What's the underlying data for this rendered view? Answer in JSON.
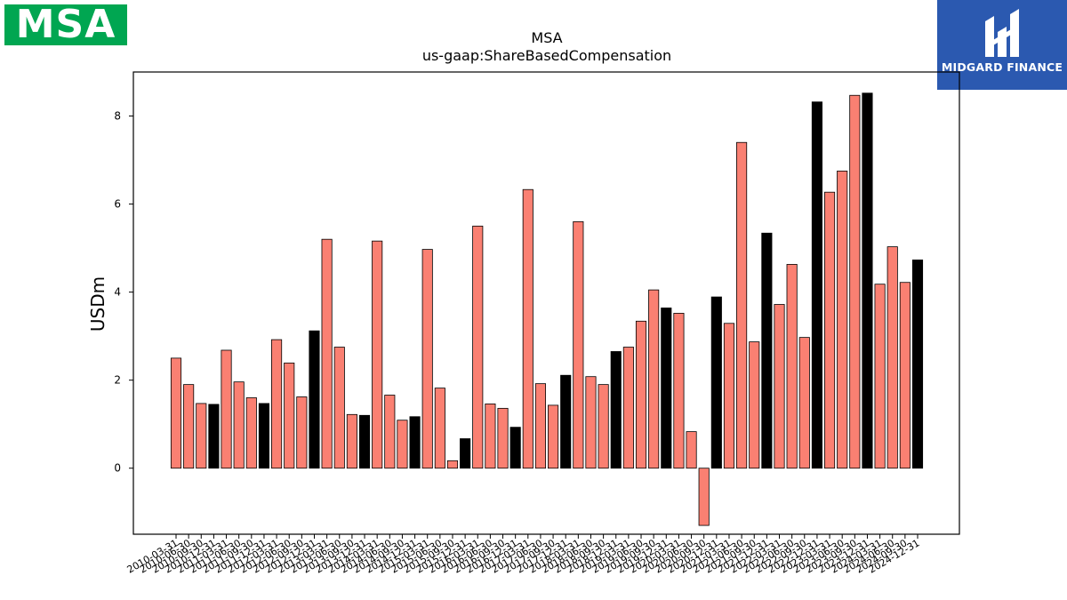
{
  "brand": {
    "left_logo_text": "MSA",
    "left_logo_color": "#00a651",
    "right_logo_text": "MIDGARD FINANCE",
    "right_logo_color": "#2b59b0"
  },
  "chart_data": {
    "type": "bar",
    "title": "MSA",
    "subtitle": "us-gaap:ShareBasedCompensation",
    "ylabel": "USDm",
    "xlabel": "",
    "ylim": [
      -1.5,
      9.0
    ],
    "yticks": [
      0,
      2,
      4,
      6,
      8
    ],
    "grid": false,
    "colors": {
      "bar": "#fa8072",
      "highlight": "#000000",
      "edge": "#000000"
    },
    "categories": [
      "2010-03-31",
      "2010-06-30",
      "2010-09-30",
      "2010-12-31",
      "2011-03-31",
      "2011-06-30",
      "2011-09-30",
      "2011-12-31",
      "2012-03-31",
      "2012-06-30",
      "2012-09-30",
      "2012-12-31",
      "2013-03-31",
      "2013-06-30",
      "2013-09-30",
      "2013-12-31",
      "2014-03-31",
      "2014-06-30",
      "2014-09-30",
      "2014-12-31",
      "2015-03-31",
      "2015-06-30",
      "2015-09-30",
      "2015-12-31",
      "2016-03-31",
      "2016-06-30",
      "2016-09-30",
      "2016-12-31",
      "2017-03-31",
      "2017-06-30",
      "2017-09-30",
      "2017-12-31",
      "2018-03-31",
      "2018-06-30",
      "2018-09-30",
      "2018-12-31",
      "2019-03-31",
      "2019-06-30",
      "2019-09-30",
      "2019-12-31",
      "2020-03-31",
      "2020-06-30",
      "2020-09-30",
      "2020-12-31",
      "2021-03-31",
      "2021-06-30",
      "2021-09-30",
      "2021-12-31",
      "2022-03-31",
      "2022-06-30",
      "2022-09-30",
      "2022-12-31",
      "2023-03-31",
      "2023-06-30",
      "2023-09-30",
      "2023-12-31",
      "2024-03-31",
      "2024-06-30",
      "2024-09-30",
      "2024-12-31"
    ],
    "values": [
      2.5,
      1.9,
      1.47,
      1.45,
      2.68,
      1.96,
      1.6,
      1.47,
      2.92,
      2.39,
      1.62,
      3.12,
      5.2,
      2.75,
      1.22,
      1.2,
      5.16,
      1.66,
      1.09,
      1.17,
      4.97,
      1.82,
      0.17,
      0.67,
      5.5,
      1.46,
      1.36,
      0.93,
      6.33,
      1.92,
      1.43,
      2.11,
      5.6,
      2.08,
      1.9,
      2.65,
      2.75,
      3.34,
      4.05,
      3.64,
      3.52,
      0.83,
      -1.3,
      3.89,
      3.29,
      7.4,
      2.87,
      5.34,
      3.72,
      4.63,
      2.97,
      8.32,
      6.27,
      6.75,
      8.47,
      8.52,
      4.18,
      5.03,
      4.22,
      4.73
    ],
    "highlighted": [
      false,
      false,
      false,
      true,
      false,
      false,
      false,
      true,
      false,
      false,
      false,
      true,
      false,
      false,
      false,
      true,
      false,
      false,
      false,
      true,
      false,
      false,
      false,
      true,
      false,
      false,
      false,
      true,
      false,
      false,
      false,
      true,
      false,
      false,
      false,
      true,
      false,
      false,
      false,
      true,
      false,
      false,
      false,
      true,
      false,
      false,
      false,
      true,
      false,
      false,
      false,
      true,
      false,
      false,
      false,
      true,
      false,
      false,
      false,
      true
    ]
  }
}
